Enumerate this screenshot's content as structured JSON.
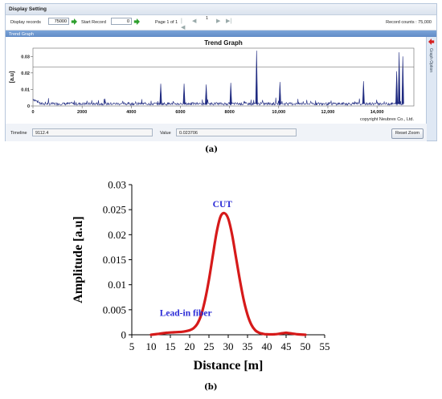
{
  "display_setting": {
    "title": "Display Setting",
    "display_records_label": "Display records",
    "display_records_value": "75000",
    "start_record_label": "Start Record",
    "start_record_value": "0",
    "page_text": "Page 1 of 1",
    "page_number": "1",
    "record_counts": "Record counts : 75,000"
  },
  "trend_panel": {
    "header": "Trend Graph",
    "side_tab": "Graph Option",
    "copyright": "copyright Neubrex Co., Ltd.",
    "timeline_label": "Timeline",
    "timeline_value": "9112.4",
    "value_label": "Value",
    "value_value": "0.023706",
    "reset_zoom": "Reset Zoom"
  },
  "captions": {
    "a": "(a)",
    "b": "(b)"
  },
  "colors": {
    "trace": "#1f2a80",
    "fit": "#d61a1a",
    "annotation": "#2a2ad6"
  },
  "chart_data": [
    {
      "type": "line",
      "title": "Trend Graph",
      "ylabel": "[a.u]",
      "xlim": [
        0,
        15500
      ],
      "ylim": [
        0,
        0.035
      ],
      "x_ticks": [
        "0",
        "2000",
        "4000",
        "6000",
        "8000",
        "10,000",
        "12,000",
        "14,000"
      ],
      "x_tick_values": [
        0,
        2000,
        4000,
        6000,
        8000,
        10000,
        12000,
        14000
      ],
      "y_ticks": [
        "0",
        "0.01",
        "0.02",
        "0.03"
      ],
      "y_tick_values": [
        0,
        0.01,
        0.02,
        0.03
      ],
      "cursor_value": 0.023706,
      "baseline": 0.0012,
      "peaks": [
        {
          "x": 5200,
          "y": 0.0135
        },
        {
          "x": 6150,
          "y": 0.0135
        },
        {
          "x": 7050,
          "y": 0.013
        },
        {
          "x": 8050,
          "y": 0.014
        },
        {
          "x": 9100,
          "y": 0.0335
        },
        {
          "x": 10050,
          "y": 0.0145
        },
        {
          "x": 13450,
          "y": 0.015
        },
        {
          "x": 14800,
          "y": 0.021
        },
        {
          "x": 14900,
          "y": 0.0325
        },
        {
          "x": 15050,
          "y": 0.03
        }
      ],
      "grid": false,
      "legend": "none"
    },
    {
      "type": "line",
      "xlabel": "Distance [m]",
      "ylabel": "Amplitude [a.u]",
      "xlim": [
        5,
        55
      ],
      "ylim": [
        0,
        0.03
      ],
      "x_ticks": [
        "5",
        "10",
        "15",
        "20",
        "25",
        "30",
        "35",
        "40",
        "45",
        "50",
        "55"
      ],
      "x_tick_values": [
        5,
        10,
        15,
        20,
        25,
        30,
        35,
        40,
        45,
        50,
        55
      ],
      "y_ticks": [
        "0",
        "0.005",
        "0.01",
        "0.015",
        "0.02",
        "0.025",
        "0.03"
      ],
      "y_tick_values": [
        0,
        0.005,
        0.01,
        0.015,
        0.02,
        0.025,
        0.03
      ],
      "annotations": [
        {
          "text": "CUT",
          "x": 28.5,
          "y": 0.0255
        },
        {
          "text": "Lead-in fiber",
          "x": 19,
          "y": 0.0038
        }
      ],
      "series": [
        {
          "x": [
            10,
            12,
            14,
            16,
            18,
            19,
            20,
            21,
            22,
            23,
            24,
            25,
            26,
            27,
            28,
            29,
            30,
            31,
            32,
            33,
            34,
            35,
            36,
            37,
            38,
            39,
            40,
            42,
            44,
            45,
            46,
            48,
            50
          ],
          "y": [
            0,
            0.0002,
            0.0004,
            0.0005,
            0.0006,
            0.0007,
            0.0009,
            0.0013,
            0.0022,
            0.004,
            0.007,
            0.011,
            0.0158,
            0.0205,
            0.0236,
            0.0243,
            0.0232,
            0.02,
            0.0155,
            0.011,
            0.007,
            0.004,
            0.002,
            0.0009,
            0.0004,
            0.0002,
            0.0001,
            0.0001,
            0.0003,
            0.0004,
            0.0003,
            0.0001,
            0
          ]
        }
      ],
      "grid": false,
      "legend": "none"
    }
  ]
}
